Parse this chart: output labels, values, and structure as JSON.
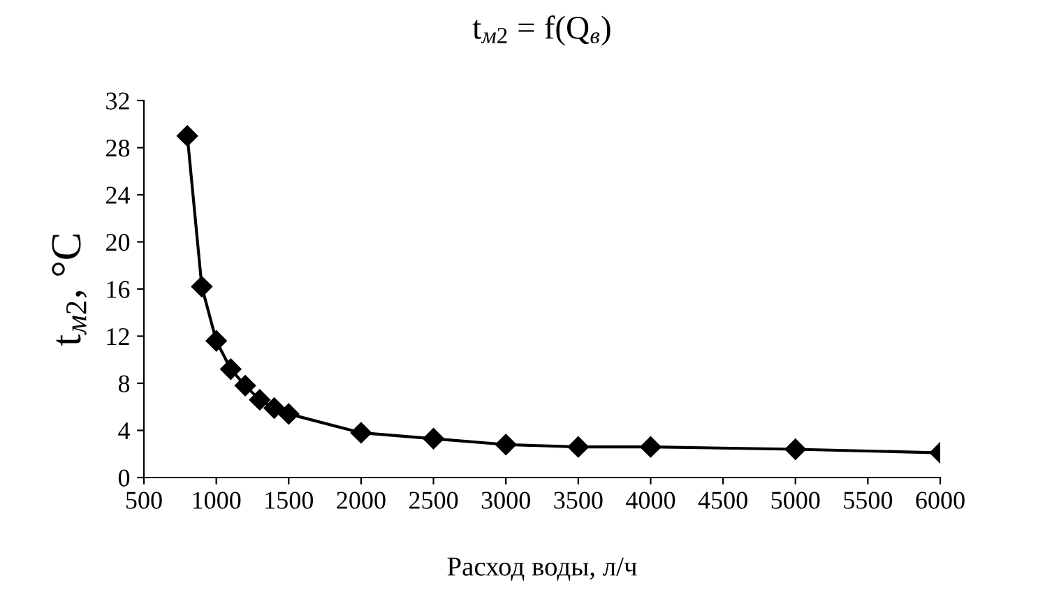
{
  "chart_data": {
    "type": "line",
    "title": "t$_{м2}$ = f(Q$_{в}$)",
    "xlabel": "Расход воды, л/ч",
    "ylabel": "t$_{м2}$, °C",
    "x": [
      800,
      900,
      1000,
      1100,
      1200,
      1300,
      1400,
      1500,
      2000,
      2500,
      3000,
      3500,
      4000,
      5000,
      6000
    ],
    "series": [
      {
        "color": "#000000",
        "values": [
          29,
          16.2,
          11.6,
          9.2,
          7.8,
          6.6,
          5.9,
          5.4,
          3.8,
          3.3,
          2.8,
          2.6,
          2.6,
          2.4,
          2.1
        ]
      }
    ],
    "xlim": [
      500,
      6000
    ],
    "xticks": [
      500,
      1000,
      1500,
      2000,
      2500,
      3000,
      3500,
      4000,
      4500,
      5000,
      5500,
      6000
    ],
    "ylim": [
      0,
      32
    ],
    "yticks": [
      0,
      4,
      8,
      12,
      16,
      20,
      24,
      28,
      32
    ],
    "grid": false,
    "legend": false,
    "marker": "diamond",
    "line_style": "solid"
  }
}
